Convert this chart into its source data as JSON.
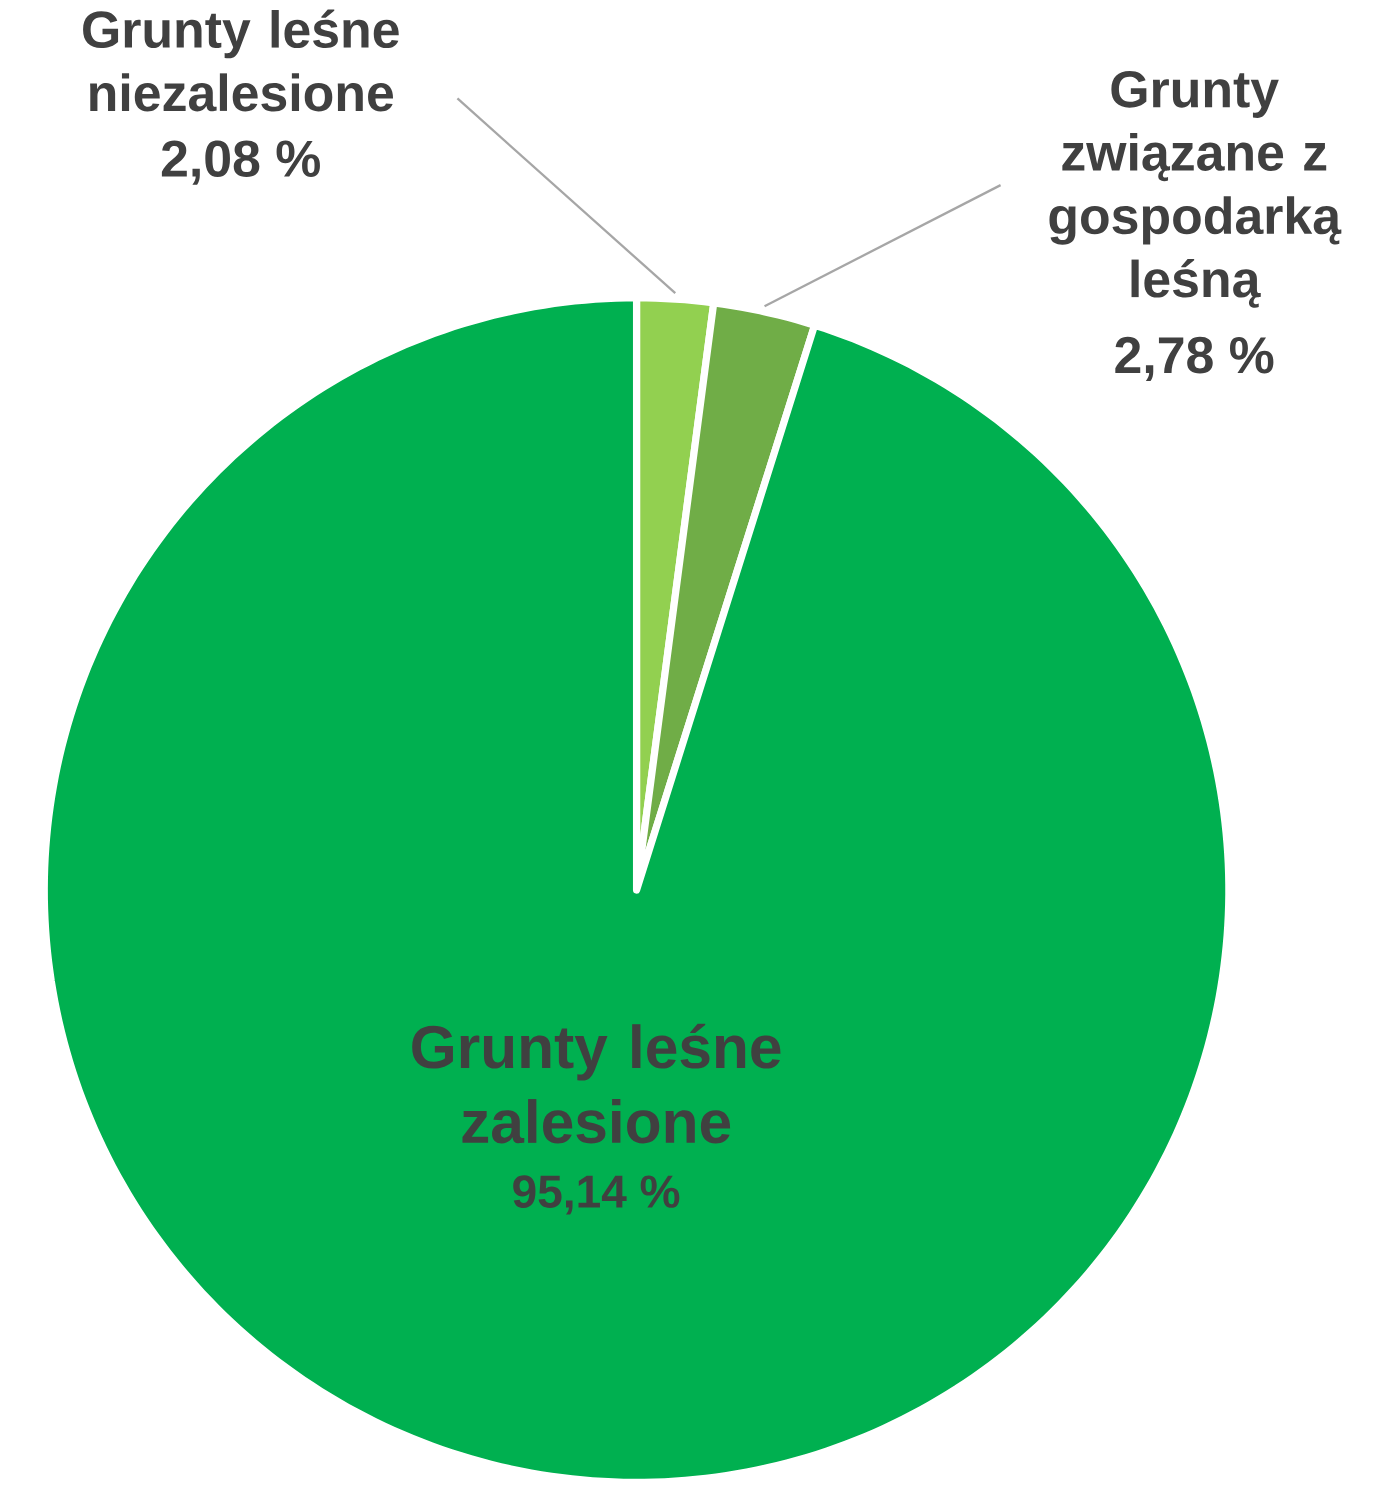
{
  "chart_data": {
    "type": "pie",
    "categories": [
      "Grunty leśne niezalesione",
      "Grunty związane z gospodarką leśną",
      "Grunty leśne zalesione"
    ],
    "values": [
      2.08,
      2.78,
      95.14
    ],
    "colors": [
      "#92d050",
      "#70ad47",
      "#00b050"
    ],
    "value_labels": [
      "2,08 %",
      "2,78 %",
      "95,14  %"
    ]
  }
}
